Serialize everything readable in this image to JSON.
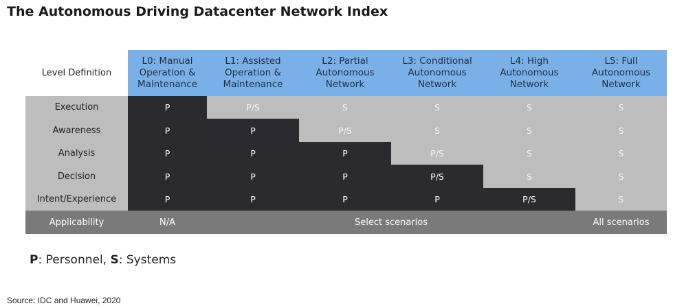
{
  "title": "The Autonomous Driving Datacenter Network Index",
  "chart_data": {
    "type": "table",
    "corner_label": "Level Definition",
    "columns": [
      [
        "L0: Manual",
        "Operation &",
        "Maintenance"
      ],
      [
        "L1: Assisted",
        "Operation &",
        "Maintenance"
      ],
      [
        "L2: Partial",
        "Autonomous",
        "Network"
      ],
      [
        "L3: Conditional",
        "Autonomous",
        "Network"
      ],
      [
        "L4: High",
        "Autonomous",
        "Network"
      ],
      [
        "L5: Full",
        "Autonomous",
        "Network"
      ]
    ],
    "rows": [
      {
        "label": "Execution",
        "values": [
          "P",
          "P/S",
          "S",
          "S",
          "S",
          "S"
        ]
      },
      {
        "label": "Awareness",
        "values": [
          "P",
          "P",
          "P/S",
          "S",
          "S",
          "S"
        ]
      },
      {
        "label": "Analysis",
        "values": [
          "P",
          "P",
          "P",
          "P/S",
          "S",
          "S"
        ]
      },
      {
        "label": "Decision",
        "values": [
          "P",
          "P",
          "P",
          "P/S",
          "S",
          "S"
        ]
      },
      {
        "label": "Intent/Experience",
        "values": [
          "P",
          "P",
          "P",
          "P",
          "P/S",
          "S"
        ]
      }
    ],
    "applicability": {
      "label": "Applicability",
      "cells": [
        {
          "text": "N/A",
          "span": 1
        },
        {
          "text": "Select scenarios",
          "span": 4
        },
        {
          "text": "All scenarios",
          "span": 1
        }
      ]
    },
    "colors": {
      "header": "#7ab0e8",
      "personnel": "#2b2a2f",
      "systems": "#bdbdbd",
      "applicability": "#7a7a7a"
    }
  },
  "legend": {
    "p_key": "P",
    "p_text": ": Personnel, ",
    "s_key": "S",
    "s_text": ": Systems"
  },
  "source": "Source: IDC and Huawei, 2020"
}
